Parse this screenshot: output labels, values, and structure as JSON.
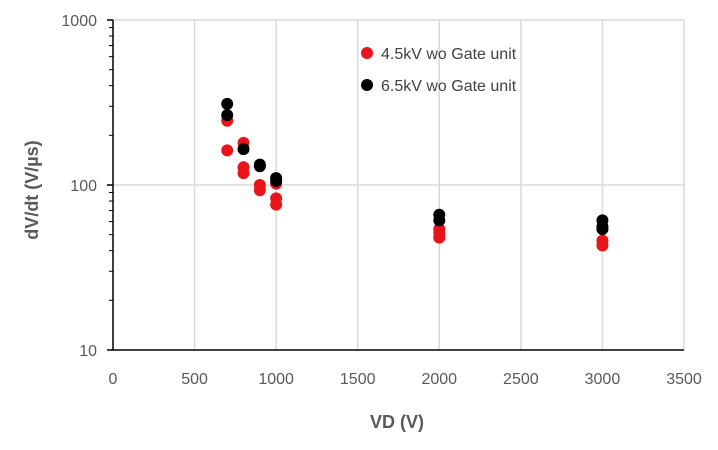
{
  "chart_data": {
    "type": "scatter",
    "xlabel": "VD (V)",
    "ylabel": "dV/dt (V/µs)",
    "xlim": [
      0,
      3500
    ],
    "ylim": [
      10,
      1000
    ],
    "y_scale": "log",
    "x_ticks": [
      "0",
      "500",
      "1000",
      "1500",
      "2000",
      "2500",
      "3000",
      "3500"
    ],
    "x_tick_values": [
      0,
      500,
      1000,
      1500,
      2000,
      2500,
      3000,
      3500
    ],
    "y_ticks": [
      "10",
      "100",
      "1000"
    ],
    "y_tick_values": [
      10,
      100,
      1000
    ],
    "grid": true,
    "legend_position": "top-right",
    "series": [
      {
        "name": "4.5kV wo Gate unit",
        "color": "#e8151b",
        "points": [
          [
            700,
            245
          ],
          [
            700,
            162
          ],
          [
            800,
            180
          ],
          [
            800,
            128
          ],
          [
            800,
            118
          ],
          [
            900,
            100
          ],
          [
            900,
            93
          ],
          [
            1000,
            102
          ],
          [
            1000,
            83
          ],
          [
            1000,
            76
          ],
          [
            2000,
            54
          ],
          [
            2000,
            51
          ],
          [
            2000,
            48
          ],
          [
            3000,
            46
          ],
          [
            3000,
            43
          ]
        ]
      },
      {
        "name": "6.5kV wo Gate unit",
        "color": "#000000",
        "points": [
          [
            700,
            310
          ],
          [
            700,
            265
          ],
          [
            800,
            165
          ],
          [
            900,
            133
          ],
          [
            900,
            130
          ],
          [
            1000,
            110
          ],
          [
            1000,
            106
          ],
          [
            2000,
            66
          ],
          [
            2000,
            61
          ],
          [
            3000,
            61
          ],
          [
            3000,
            56
          ],
          [
            3000,
            54
          ]
        ]
      }
    ]
  }
}
